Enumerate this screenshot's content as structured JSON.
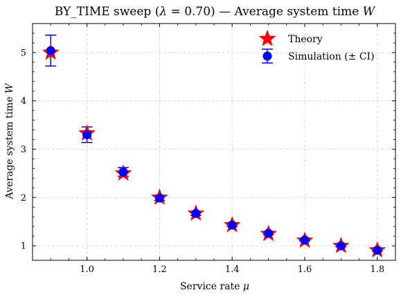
{
  "chart_data": {
    "type": "scatter",
    "title": "BY_TIME sweep (λ = 0.70) — Average system time W",
    "title_parts": {
      "prefix": "BY_TIME sweep (",
      "lambda": "λ",
      "mid": " = 0.70) — Average system time ",
      "W": "W"
    },
    "xlabel": "Service rate μ",
    "xlabel_parts": {
      "text": "Service rate ",
      "symbol": "μ"
    },
    "ylabel": "Average system time W",
    "ylabel_parts": {
      "text": "Average system time ",
      "symbol": "W"
    },
    "xlim": [
      0.85,
      1.85
    ],
    "ylim": [
      0.7,
      5.6
    ],
    "xticks": [
      1.0,
      1.2,
      1.4,
      1.6,
      1.8
    ],
    "xtick_labels": [
      "1.0",
      "1.2",
      "1.4",
      "1.6",
      "1.8"
    ],
    "yticks": [
      1,
      2,
      3,
      4,
      5
    ],
    "ytick_labels": [
      "1",
      "2",
      "3",
      "4",
      "5"
    ],
    "grid": true,
    "legend_position": "top-right",
    "x": [
      0.9,
      1.0,
      1.1,
      1.2,
      1.3,
      1.4,
      1.5,
      1.6,
      1.7,
      1.8
    ],
    "series": [
      {
        "name": "Theory",
        "marker": "star",
        "color": "#ff0000",
        "values": [
          5.0,
          3.33,
          2.5,
          2.0,
          1.67,
          1.43,
          1.25,
          1.11,
          1.0,
          0.91
        ]
      },
      {
        "name": "Simulation (± CI)",
        "marker": "circle",
        "color": "#0000ff",
        "values": [
          5.04,
          3.3,
          2.53,
          1.99,
          1.67,
          1.43,
          1.26,
          1.12,
          1.0,
          0.91
        ],
        "ci_low": [
          4.72,
          3.14,
          2.44,
          1.94,
          1.63,
          1.4,
          1.23,
          1.1,
          0.98,
          0.89
        ],
        "ci_high": [
          5.36,
          3.46,
          2.62,
          2.04,
          1.71,
          1.46,
          1.29,
          1.14,
          1.02,
          0.93
        ]
      }
    ]
  }
}
